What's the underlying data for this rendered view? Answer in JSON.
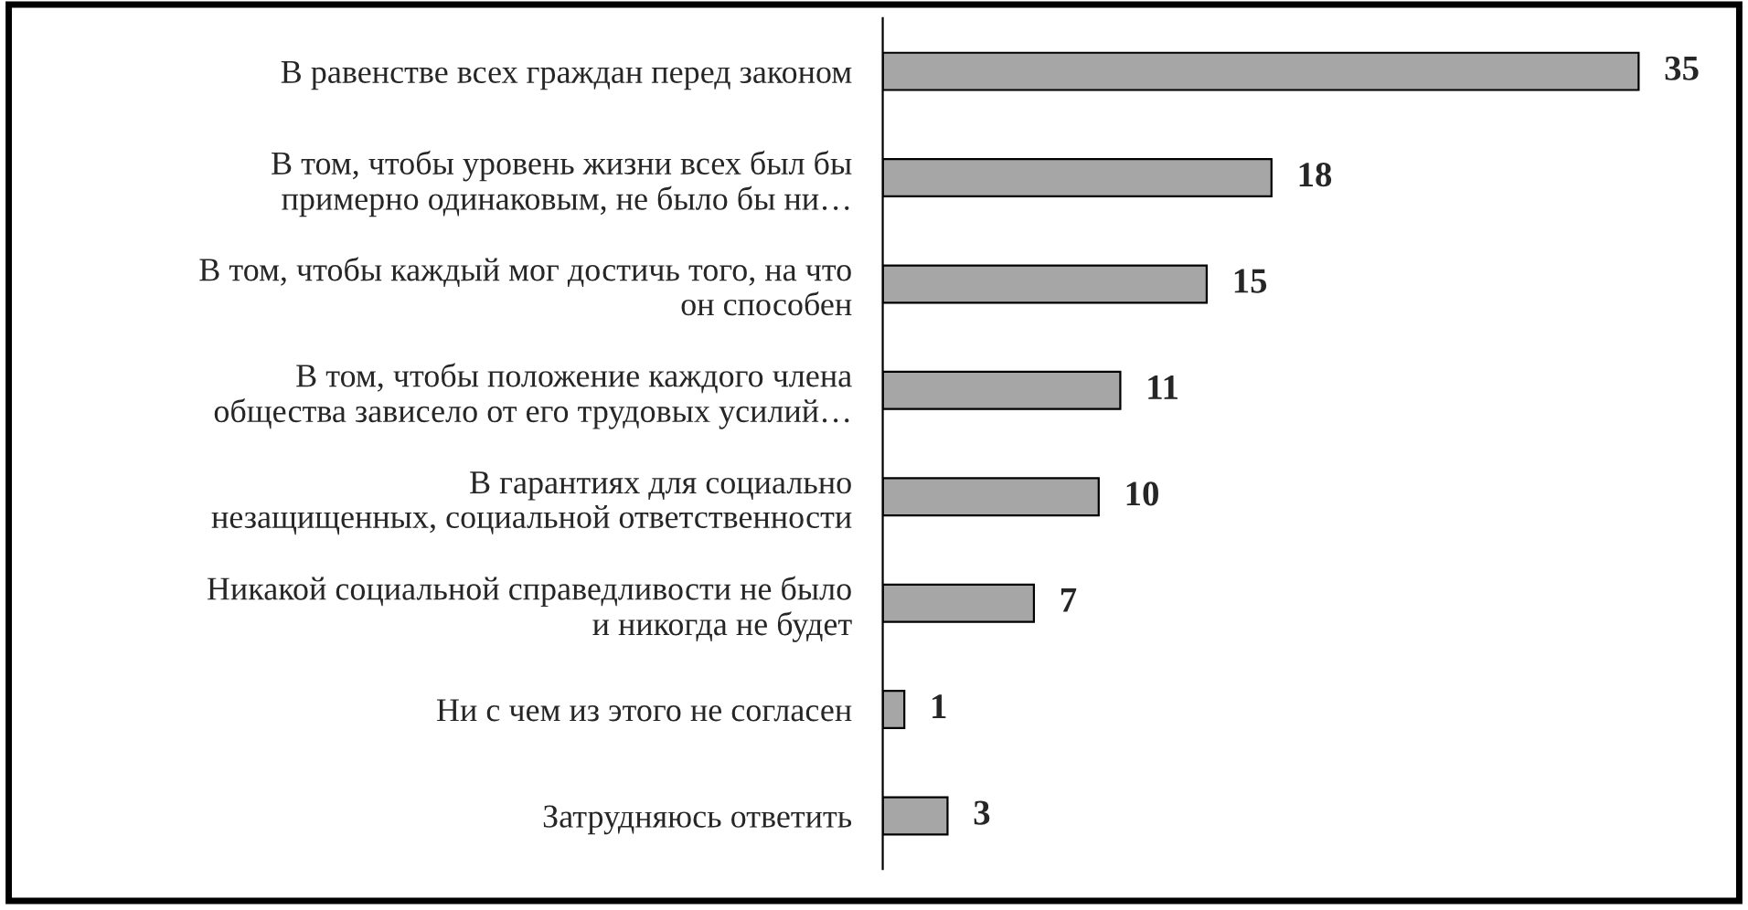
{
  "chart_data": {
    "type": "bar",
    "orientation": "horizontal",
    "categories": [
      "В равенстве всех граждан перед законом",
      "В том, чтобы уровень жизни всех был бы\nпримерно одинаковым, не было бы ни…",
      "В том, чтобы каждый мог достичь того, на что\nон способен",
      "В том, чтобы положение каждого члена\nобщества зависело от его трудовых усилий…",
      "В гарантиях для социально\nнезащищенных, социальной ответственности",
      "Никакой социальной справедливости не было\nи никогда не будет",
      "Ни с чем из этого не согласен",
      "Затрудняюсь ответить"
    ],
    "values": [
      35,
      18,
      15,
      11,
      10,
      7,
      1,
      3
    ],
    "color": "#a6a6a6",
    "data_labels": true,
    "grid": false,
    "legend": false
  }
}
